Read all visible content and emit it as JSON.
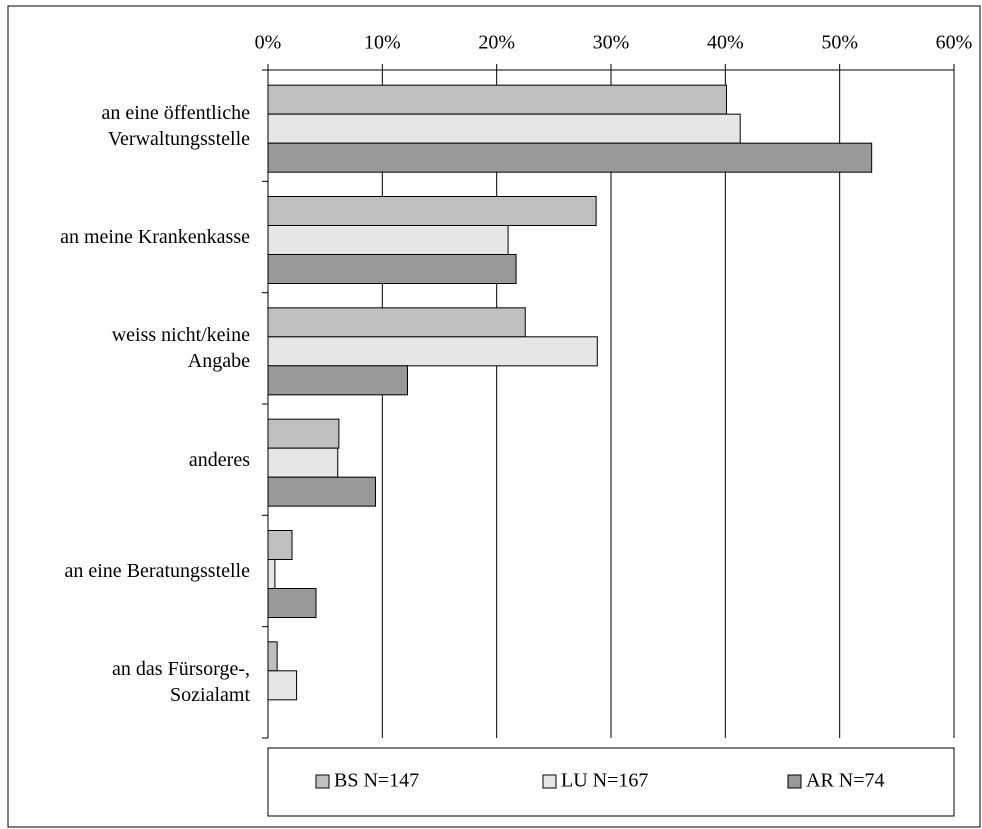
{
  "chart_data": {
    "type": "hbar",
    "categories": [
      "an eine öffentliche\nVerwaltungsstelle",
      "an meine Krankenkasse",
      "weiss nicht/keine\nAngabe",
      "anderes",
      "an eine Beratungsstelle",
      "an das Fürsorge-,\nSozialamt"
    ],
    "series": [
      {
        "name": "BS N=147",
        "color": "#bfbfbf",
        "values": [
          40.1,
          28.7,
          22.5,
          6.2,
          2.1,
          0.8
        ]
      },
      {
        "name": "LU N=167",
        "color": "#e6e6e6",
        "values": [
          41.3,
          21.0,
          28.8,
          6.1,
          0.6,
          2.5
        ]
      },
      {
        "name": "AR N=74",
        "color": "#999999",
        "values": [
          52.8,
          21.7,
          12.2,
          9.4,
          4.2,
          0
        ]
      }
    ],
    "xlim": [
      0,
      60
    ],
    "xticks": [
      {
        "value": 0,
        "label": "0%"
      },
      {
        "value": 10,
        "label": "10%"
      },
      {
        "value": 20,
        "label": "20%"
      },
      {
        "value": 30,
        "label": "30%"
      },
      {
        "value": 40,
        "label": "40%"
      },
      {
        "value": 50,
        "label": "50%"
      },
      {
        "value": 60,
        "label": "60%"
      }
    ],
    "grid": true,
    "legend": "bottom"
  }
}
